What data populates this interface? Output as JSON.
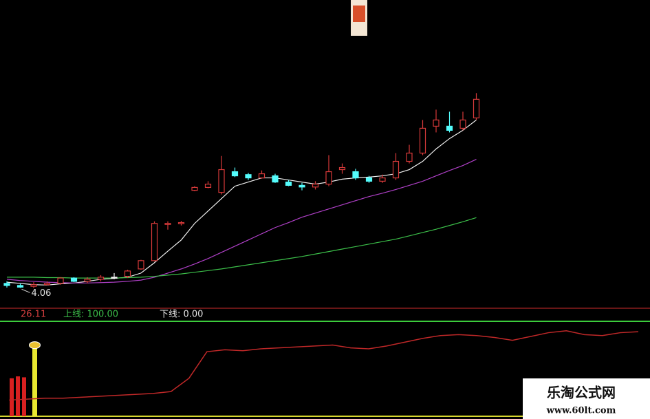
{
  "chart_data": [
    {
      "type": "candlestick",
      "open": [
        4.15,
        4.1,
        4.08,
        4.12,
        4.15,
        4.28,
        4.2,
        4.25,
        4.3,
        4.32,
        4.5,
        4.7,
        5.58,
        5.6,
        6.4,
        6.47,
        6.35,
        6.85,
        6.78,
        6.7,
        6.75,
        6.6,
        6.52,
        6.48,
        6.55,
        6.9,
        6.85,
        6.7,
        6.62,
        6.7,
        7.1,
        7.3,
        7.95,
        7.95,
        7.9,
        8.15
      ],
      "high": [
        4.2,
        4.15,
        4.18,
        4.2,
        4.3,
        4.3,
        4.3,
        4.35,
        4.4,
        4.48,
        4.72,
        5.65,
        5.65,
        5.66,
        6.5,
        6.62,
        7.23,
        6.95,
        6.82,
        6.88,
        6.8,
        6.65,
        6.58,
        6.62,
        7.25,
        7.05,
        6.92,
        6.75,
        6.78,
        7.3,
        7.5,
        8.1,
        8.35,
        8.3,
        8.3,
        8.75
      ],
      "low": [
        4.05,
        4.04,
        4.04,
        4.1,
        4.12,
        4.18,
        4.15,
        4.2,
        4.25,
        4.28,
        4.48,
        4.68,
        5.45,
        5.55,
        6.38,
        6.45,
        6.3,
        6.72,
        6.65,
        6.68,
        6.58,
        6.5,
        6.4,
        6.42,
        6.5,
        6.8,
        6.65,
        6.58,
        6.58,
        6.65,
        7.05,
        7.25,
        7.8,
        7.8,
        7.85,
        8.1
      ],
      "close": [
        4.1,
        4.06,
        4.12,
        4.15,
        4.28,
        4.2,
        4.25,
        4.3,
        4.3,
        4.45,
        4.7,
        5.6,
        5.6,
        5.62,
        6.47,
        6.55,
        6.9,
        6.75,
        6.7,
        6.8,
        6.6,
        6.52,
        6.48,
        6.55,
        6.85,
        6.95,
        6.7,
        6.62,
        6.7,
        7.1,
        7.3,
        7.9,
        8.1,
        7.85,
        8.1,
        8.6
      ],
      "up_color": "#d83a3a",
      "down_color": "#54fcfc",
      "series": [
        {
          "color": "#f0f0f0",
          "values": [
            4.18,
            4.15,
            4.12,
            4.11,
            4.14,
            4.16,
            4.2,
            4.25,
            4.27,
            4.3,
            4.4,
            4.65,
            4.93,
            5.2,
            5.6,
            5.9,
            6.2,
            6.5,
            6.6,
            6.7,
            6.7,
            6.65,
            6.6,
            6.55,
            6.6,
            6.67,
            6.7,
            6.72,
            6.75,
            6.8,
            6.9,
            7.1,
            7.4,
            7.65,
            7.85,
            8.1
          ]
        },
        {
          "color": "#b040c8",
          "values": [
            4.25,
            4.22,
            4.2,
            4.18,
            4.17,
            4.16,
            4.16,
            4.17,
            4.18,
            4.2,
            4.23,
            4.3,
            4.4,
            4.5,
            4.62,
            4.75,
            4.9,
            5.05,
            5.2,
            5.35,
            5.5,
            5.62,
            5.75,
            5.85,
            5.95,
            6.05,
            6.15,
            6.25,
            6.33,
            6.42,
            6.52,
            6.62,
            6.75,
            6.88,
            7.0,
            7.15
          ]
        },
        {
          "color": "#3cc04a",
          "values": [
            4.3,
            4.3,
            4.3,
            4.29,
            4.29,
            4.28,
            4.28,
            4.28,
            4.28,
            4.29,
            4.3,
            4.32,
            4.35,
            4.38,
            4.42,
            4.46,
            4.5,
            4.55,
            4.6,
            4.65,
            4.7,
            4.75,
            4.8,
            4.86,
            4.92,
            4.98,
            5.04,
            5.1,
            5.16,
            5.22,
            5.3,
            5.38,
            5.46,
            5.55,
            5.64,
            5.74
          ]
        }
      ],
      "ylim": [
        3.6,
        11.0
      ],
      "min_label": 4.06
    },
    {
      "type": "line",
      "value": 26.11,
      "upper_label": "上线: 100.00",
      "lower_label": "下线: 0.00",
      "values": [
        17,
        18,
        19,
        19,
        20,
        21,
        22,
        23,
        24,
        26,
        40,
        68,
        70,
        69,
        71,
        72,
        73,
        74,
        75,
        72,
        71,
        74,
        78,
        82,
        85,
        86,
        85,
        83,
        80,
        84,
        88,
        90,
        86,
        85,
        88,
        89
      ],
      "color": "#c02828",
      "signal_bars": [
        {
          "color": "#d82020",
          "values": [
            40,
            42,
            41
          ]
        },
        {
          "color": "#e8e830",
          "values": [
            72
          ]
        }
      ],
      "ylim": [
        0,
        100
      ]
    }
  ],
  "watermark": {
    "title": "乐淘公式网",
    "url": "www.60lt.com"
  }
}
